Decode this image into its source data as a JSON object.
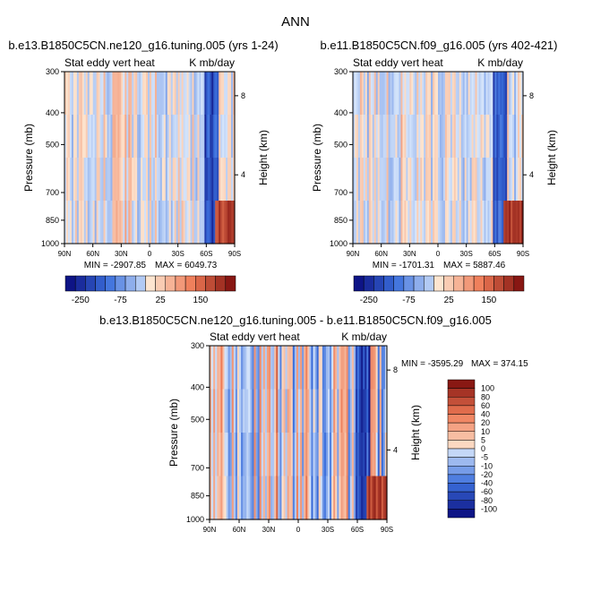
{
  "page_title": "ANN",
  "colors": {
    "neg_extreme": "#08087a",
    "neg_mid": "#3b6fdc",
    "neg_light": "#d7e6fb",
    "pos_light": "#fde5d0",
    "pos_mid": "#ee7a55",
    "pos_extreme": "#7a0a0a",
    "frame": "#000000",
    "background": "#ffffff"
  },
  "chart_data": [
    {
      "type": "heatmap",
      "title": "b.e13.B1850C5CN.ne120_g16.tuning.005 (yrs 1-24)",
      "subtitle_left": "Stat eddy vert heat",
      "subtitle_right": "K mb/day",
      "xlabel": "",
      "ylabel": "Pressure (mb)",
      "ylabel_right": "Height (km)",
      "x_ticks": [
        "90N",
        "60N",
        "30N",
        "0",
        "30S",
        "60S",
        "90S"
      ],
      "y_ticks": [
        "300",
        "400",
        "500",
        "700",
        "850",
        "1000"
      ],
      "y_ticks_right": [
        "8",
        "4"
      ],
      "ylim": [
        300,
        1000
      ],
      "y_scale": "log",
      "min": -2907.85,
      "max": 6049.73,
      "min_label": "MIN = -2907.85",
      "max_label": "MAX = 6049.73",
      "colorbar_orientation": "horizontal",
      "colorbar_labels": [
        "-250",
        "-75",
        "25",
        "150"
      ]
    },
    {
      "type": "heatmap",
      "title": "b.e11.B1850C5CN.f09_g16.005 (yrs 402-421)",
      "subtitle_left": "Stat eddy vert heat",
      "subtitle_right": "K mb/day",
      "xlabel": "",
      "ylabel": "Pressure (mb)",
      "ylabel_right": "Height (km)",
      "x_ticks": [
        "90N",
        "60N",
        "30N",
        "0",
        "30S",
        "60S",
        "90S"
      ],
      "y_ticks": [
        "300",
        "400",
        "500",
        "700",
        "850",
        "1000"
      ],
      "y_ticks_right": [
        "8",
        "4"
      ],
      "ylim": [
        300,
        1000
      ],
      "y_scale": "log",
      "min": -1701.31,
      "max": 5887.46,
      "min_label": "MIN = -1701.31",
      "max_label": "MAX = 5887.46",
      "colorbar_orientation": "horizontal",
      "colorbar_labels": [
        "-250",
        "-75",
        "25",
        "150"
      ]
    },
    {
      "type": "heatmap",
      "title": "b.e13.B1850C5CN.ne120_g16.tuning.005 - b.e11.B1850C5CN.f09_g16.005",
      "subtitle_left": "Stat eddy vert heat",
      "subtitle_right": "K mb/day",
      "xlabel": "",
      "ylabel": "Pressure (mb)",
      "ylabel_right": "Height (km)",
      "x_ticks": [
        "90N",
        "60N",
        "30N",
        "0",
        "30S",
        "60S",
        "90S"
      ],
      "y_ticks": [
        "300",
        "400",
        "500",
        "700",
        "850",
        "1000"
      ],
      "y_ticks_right": [
        "8",
        "4"
      ],
      "ylim": [
        300,
        1000
      ],
      "y_scale": "log",
      "min": -3595.29,
      "max": 374.15,
      "min_label": "MIN = -3595.29",
      "max_label": "MAX = 374.15",
      "colorbar_orientation": "vertical",
      "colorbar_labels": [
        "100",
        "80",
        "60",
        "40",
        "20",
        "10",
        "5",
        "0",
        "-5",
        "-10",
        "-20",
        "-40",
        "-60",
        "-80",
        "-100"
      ]
    }
  ]
}
